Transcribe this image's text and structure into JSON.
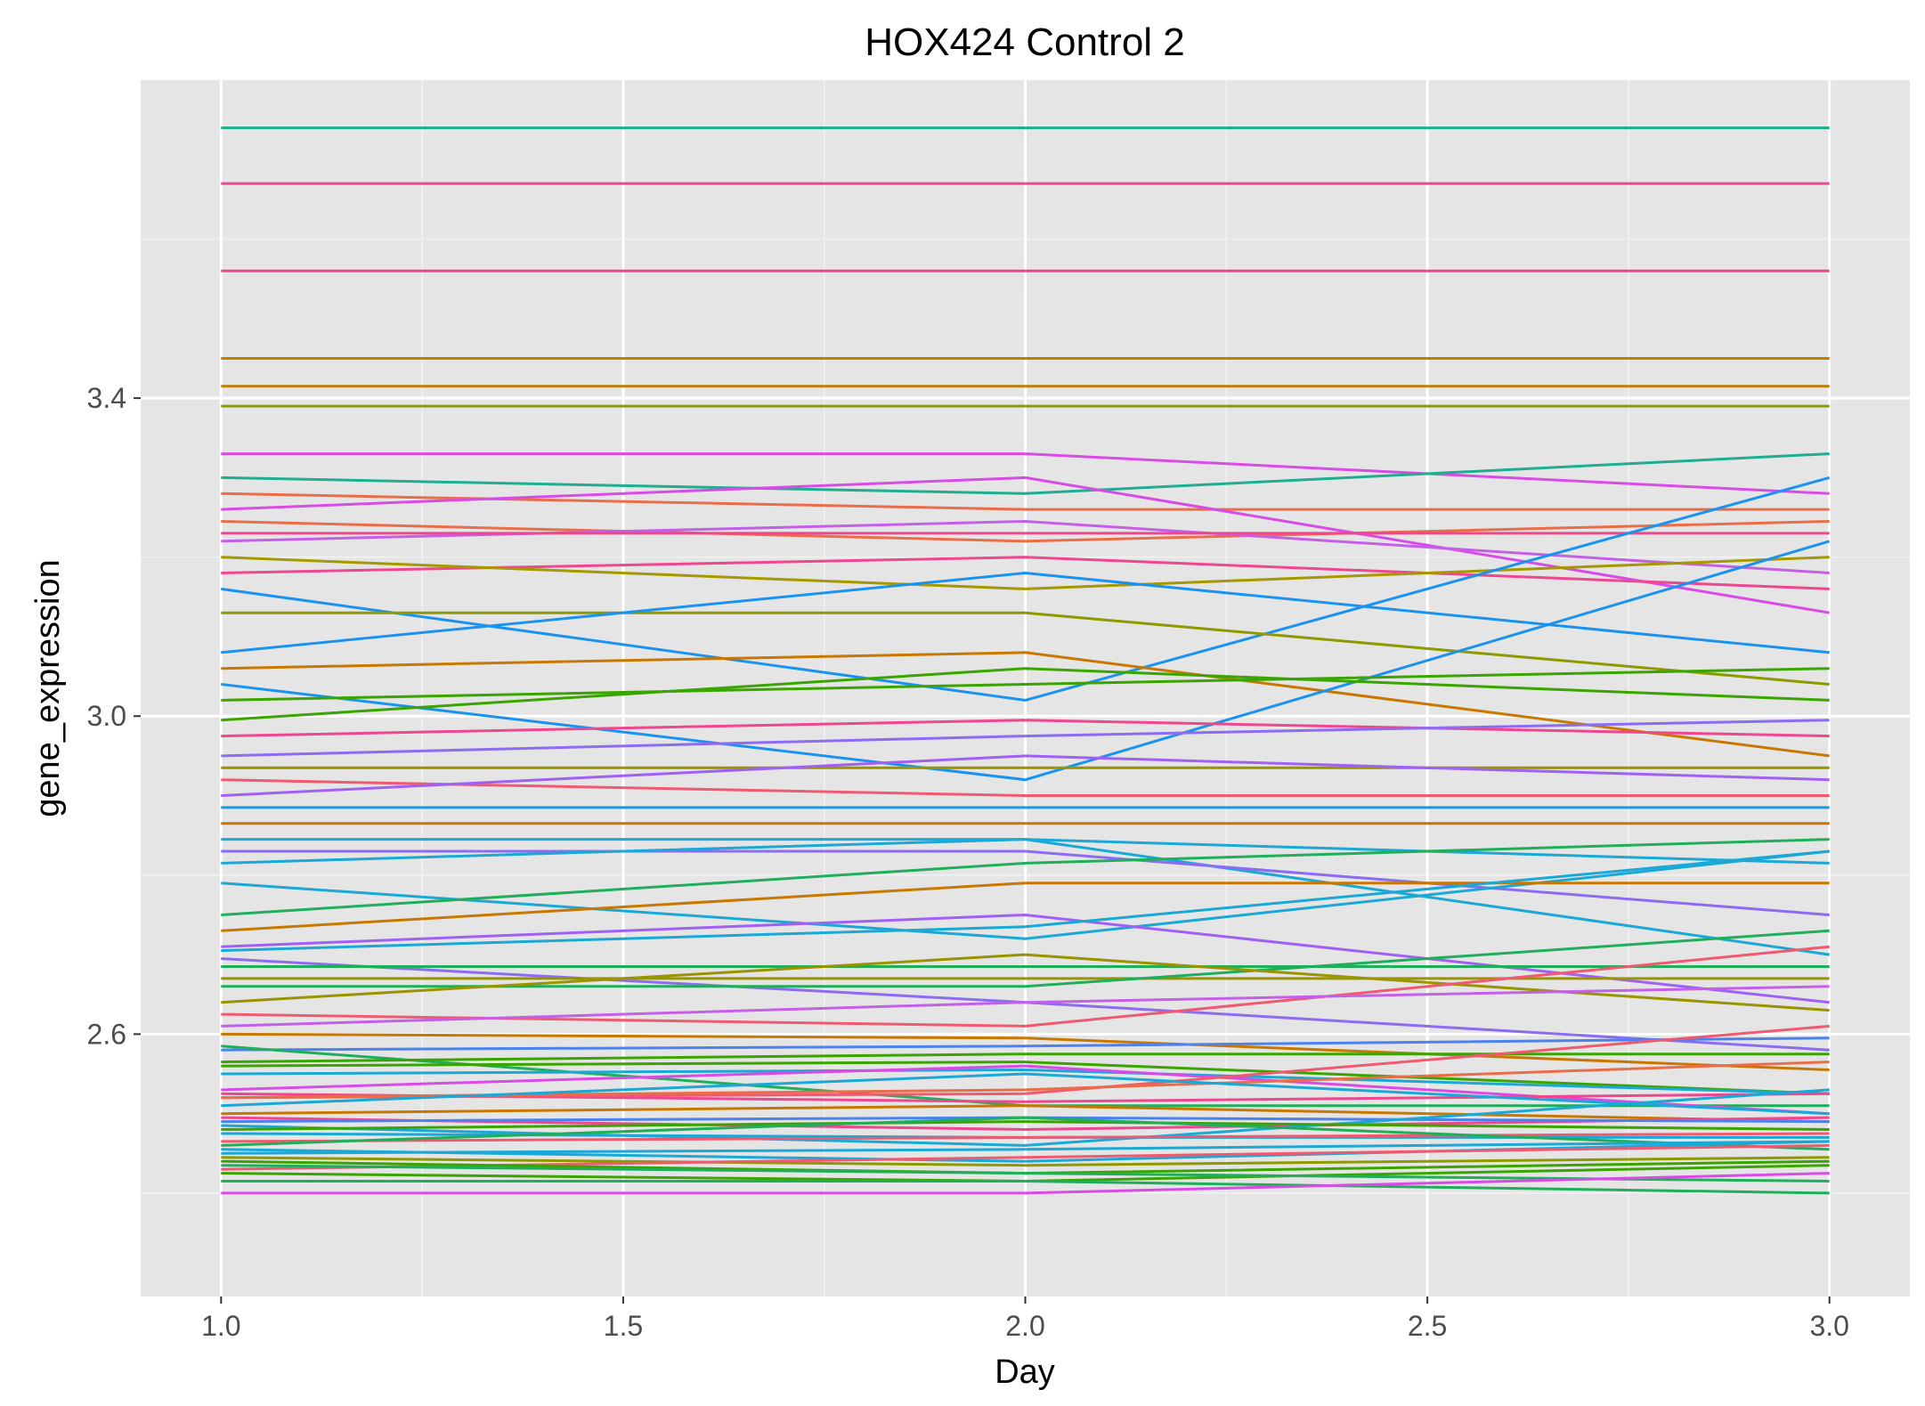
{
  "chart_data": {
    "type": "line",
    "title": "HOX424 Control 2",
    "xlabel": "Day",
    "ylabel": "gene_expression",
    "xlim": [
      0.9,
      3.1
    ],
    "ylim": [
      2.27,
      3.8
    ],
    "x_ticks": [
      "1.0",
      "1.5",
      "2.0",
      "2.5",
      "3.0"
    ],
    "x_tick_values": [
      1.0,
      1.5,
      2.0,
      2.5,
      3.0
    ],
    "y_ticks": [
      "2.6",
      "3.0",
      "3.4"
    ],
    "y_tick_values": [
      2.6,
      3.0,
      3.4
    ],
    "grid": true,
    "legend": "none",
    "background": "#e5e5e5",
    "x": [
      1,
      2,
      3
    ],
    "series": [
      {
        "color": "#1ead8f",
        "values": [
          3.74,
          3.74,
          3.74
        ]
      },
      {
        "color": "#f0468f",
        "values": [
          3.67,
          3.67,
          3.67
        ]
      },
      {
        "color": "#f0468f",
        "values": [
          3.56,
          3.56,
          3.56
        ]
      },
      {
        "color": "#c08000",
        "values": [
          3.45,
          3.45,
          3.45
        ]
      },
      {
        "color": "#c08000",
        "values": [
          3.415,
          3.415,
          3.415
        ]
      },
      {
        "color": "#8e9a00",
        "values": [
          3.39,
          3.39,
          3.39
        ]
      },
      {
        "color": "#d94be6",
        "values": [
          3.33,
          3.33,
          3.28
        ]
      },
      {
        "color": "#1ead8f",
        "values": [
          3.3,
          3.28,
          3.33
        ]
      },
      {
        "color": "#ea6d4a",
        "values": [
          3.28,
          3.26,
          3.26
        ]
      },
      {
        "color": "#d94be6",
        "values": [
          3.26,
          3.3,
          3.13
        ]
      },
      {
        "color": "#ea6d4a",
        "values": [
          3.245,
          3.22,
          3.245
        ]
      },
      {
        "color": "#c45fe8",
        "values": [
          3.22,
          3.245,
          3.18
        ]
      },
      {
        "color": "#f0468f",
        "values": [
          3.23,
          3.23,
          3.23
        ]
      },
      {
        "color": "#f0468f",
        "values": [
          3.18,
          3.2,
          3.16
        ]
      },
      {
        "color": "#a69800",
        "values": [
          3.2,
          3.16,
          3.2
        ]
      },
      {
        "color": "#1a93f0",
        "values": [
          3.16,
          3.02,
          3.3
        ]
      },
      {
        "color": "#8e9a00",
        "values": [
          3.13,
          3.13,
          3.04
        ]
      },
      {
        "color": "#1a93f0",
        "values": [
          3.08,
          3.18,
          3.08
        ]
      },
      {
        "color": "#c87800",
        "values": [
          3.06,
          3.08,
          2.95
        ]
      },
      {
        "color": "#1a93f0",
        "values": [
          3.04,
          2.92,
          3.22
        ]
      },
      {
        "color": "#3aa500",
        "values": [
          3.02,
          3.04,
          3.06
        ]
      },
      {
        "color": "#3aa500",
        "values": [
          2.995,
          3.06,
          3.02
        ]
      },
      {
        "color": "#f0468f",
        "values": [
          2.975,
          2.995,
          2.975
        ]
      },
      {
        "color": "#8b6cf3",
        "values": [
          2.95,
          2.975,
          2.995
        ]
      },
      {
        "color": "#9a9400",
        "values": [
          2.935,
          2.935,
          2.935
        ]
      },
      {
        "color": "#f05a70",
        "values": [
          2.92,
          2.9,
          2.9
        ]
      },
      {
        "color": "#a060f5",
        "values": [
          2.9,
          2.95,
          2.92
        ]
      },
      {
        "color": "#1a9be0",
        "values": [
          2.885,
          2.885,
          2.885
        ]
      },
      {
        "color": "#c87800",
        "values": [
          2.865,
          2.865,
          2.865
        ]
      },
      {
        "color": "#1aa8d6",
        "values": [
          2.845,
          2.845,
          2.7
        ]
      },
      {
        "color": "#8b6cf3",
        "values": [
          2.83,
          2.83,
          2.75
        ]
      },
      {
        "color": "#1aa8d6",
        "values": [
          2.815,
          2.845,
          2.815
        ]
      },
      {
        "color": "#1aa8d6",
        "values": [
          2.79,
          2.72,
          2.83
        ]
      },
      {
        "color": "#1fae5a",
        "values": [
          2.75,
          2.815,
          2.845
        ]
      },
      {
        "color": "#c87800",
        "values": [
          2.73,
          2.79,
          2.79
        ]
      },
      {
        "color": "#a060f5",
        "values": [
          2.71,
          2.75,
          2.64
        ]
      },
      {
        "color": "#1aa8d6",
        "values": [
          2.705,
          2.735,
          2.83
        ]
      },
      {
        "color": "#8b6cf3",
        "values": [
          2.695,
          2.64,
          2.58
        ]
      },
      {
        "color": "#1fae5a",
        "values": [
          2.685,
          2.685,
          2.685
        ]
      },
      {
        "color": "#9a9400",
        "values": [
          2.67,
          2.67,
          2.67
        ]
      },
      {
        "color": "#1fae5a",
        "values": [
          2.66,
          2.66,
          2.73
        ]
      },
      {
        "color": "#9a9400",
        "values": [
          2.64,
          2.7,
          2.63
        ]
      },
      {
        "color": "#f05a70",
        "values": [
          2.625,
          2.61,
          2.71
        ]
      },
      {
        "color": "#c45fe8",
        "values": [
          2.61,
          2.64,
          2.66
        ]
      },
      {
        "color": "#c87800",
        "values": [
          2.6,
          2.595,
          2.555
        ]
      },
      {
        "color": "#4b82f0",
        "values": [
          2.58,
          2.585,
          2.595
        ]
      },
      {
        "color": "#1fae5a",
        "values": [
          2.585,
          2.51,
          2.51
        ]
      },
      {
        "color": "#3aa500",
        "values": [
          2.565,
          2.575,
          2.575
        ]
      },
      {
        "color": "#3aa500",
        "values": [
          2.56,
          2.565,
          2.525
        ]
      },
      {
        "color": "#1aa8d6",
        "values": [
          2.55,
          2.555,
          2.525
        ]
      },
      {
        "color": "#d94be6",
        "values": [
          2.53,
          2.56,
          2.5
        ]
      },
      {
        "color": "#f0468f",
        "values": [
          2.525,
          2.515,
          2.525
        ]
      },
      {
        "color": "#f05a70",
        "values": [
          2.52,
          2.525,
          2.61
        ]
      },
      {
        "color": "#ea6d4a",
        "values": [
          2.52,
          2.53,
          2.565
        ]
      },
      {
        "color": "#1aa8d6",
        "values": [
          2.51,
          2.55,
          2.5
        ]
      },
      {
        "color": "#c87800",
        "values": [
          2.5,
          2.51,
          2.49
        ]
      },
      {
        "color": "#f0468f",
        "values": [
          2.495,
          2.48,
          2.495
        ]
      },
      {
        "color": "#4b82f0",
        "values": [
          2.49,
          2.495,
          2.49
        ]
      },
      {
        "color": "#1aa8d6",
        "values": [
          2.485,
          2.46,
          2.53
        ]
      },
      {
        "color": "#3aa500",
        "values": [
          2.48,
          2.49,
          2.48
        ]
      },
      {
        "color": "#1aa8d6",
        "values": [
          2.475,
          2.47,
          2.47
        ]
      },
      {
        "color": "#f05a70",
        "values": [
          2.465,
          2.47,
          2.475
        ]
      },
      {
        "color": "#1fae5a",
        "values": [
          2.46,
          2.495,
          2.455
        ]
      },
      {
        "color": "#1aa8d6",
        "values": [
          2.455,
          2.44,
          2.465
        ]
      },
      {
        "color": "#1aa8d6",
        "values": [
          2.45,
          2.455,
          2.465
        ]
      },
      {
        "color": "#8e9a00",
        "values": [
          2.445,
          2.435,
          2.445
        ]
      },
      {
        "color": "#f05a70",
        "values": [
          2.43,
          2.445,
          2.46
        ]
      },
      {
        "color": "#3aa500",
        "values": [
          2.44,
          2.425,
          2.44
        ]
      },
      {
        "color": "#3aa500",
        "values": [
          2.425,
          2.415,
          2.435
        ]
      },
      {
        "color": "#1fae5a",
        "values": [
          2.415,
          2.415,
          2.4
        ]
      },
      {
        "color": "#1fae5a",
        "values": [
          2.435,
          2.425,
          2.415
        ]
      },
      {
        "color": "#d94be6",
        "values": [
          2.4,
          2.4,
          2.425
        ]
      }
    ]
  }
}
